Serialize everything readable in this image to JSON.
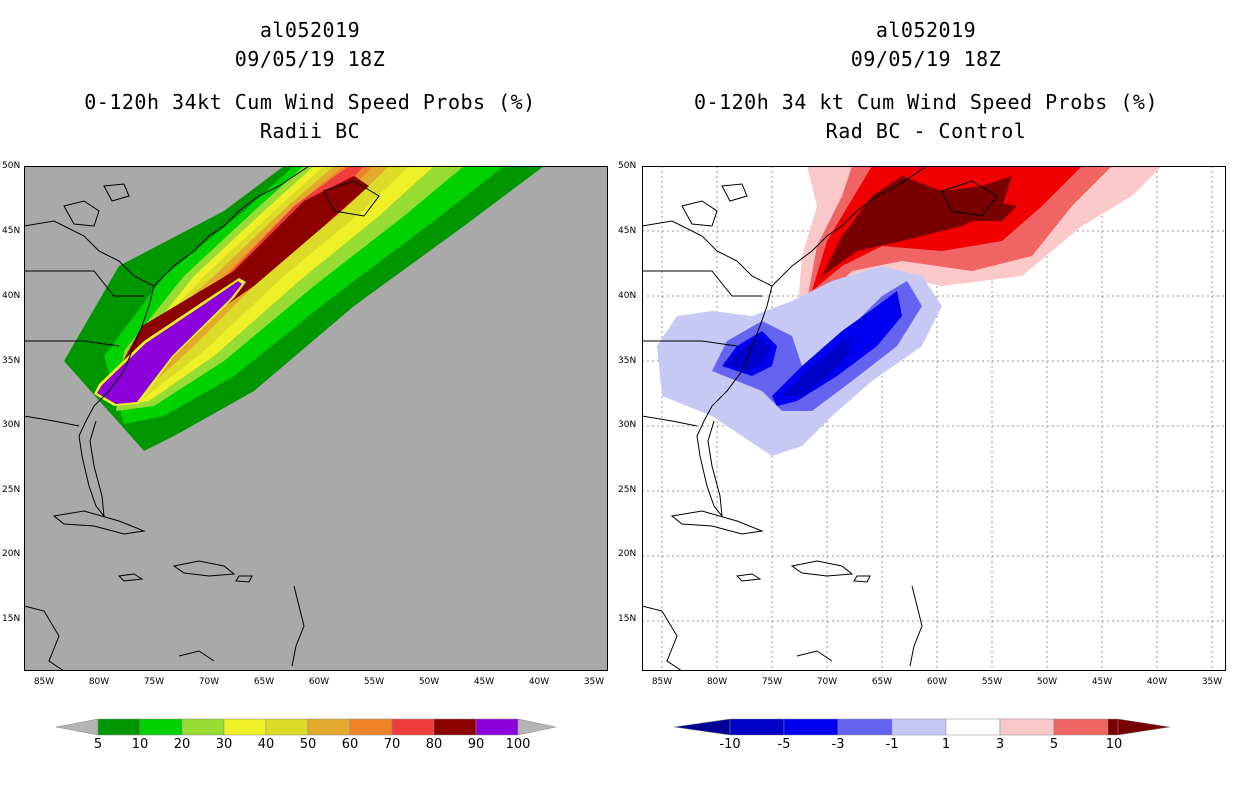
{
  "left_panel": {
    "title_lines": [
      "al052019",
      "09/05/19 18Z",
      "0-120h 34kt Cum Wind Speed Probs (%)",
      "Radii BC"
    ],
    "colorbar_labels": [
      "5",
      "10",
      "20",
      "30",
      "40",
      "50",
      "60",
      "70",
      "80",
      "90",
      "100"
    ],
    "colorbar_colors": [
      "#009600",
      "#00d200",
      "#96dc32",
      "#f0f028",
      "#dcdc28",
      "#e1aa2d",
      "#ed8228",
      "#f03c3c",
      "#8c0000",
      "#8c00dc"
    ]
  },
  "right_panel": {
    "title_lines": [
      "al052019",
      "09/05/19 18Z",
      "0-120h 34 kt Cum Wind Speed Probs (%)",
      "Rad BC - Control"
    ],
    "colorbar_labels": [
      "-10",
      "-5",
      "-3",
      "-1",
      "1",
      "3",
      "5",
      "10"
    ],
    "colorbar_colors": [
      "#0000c8",
      "#0000f0",
      "#6464f0",
      "#c8c8f5",
      "#ffffff",
      "#fac8c8",
      "#f06464",
      "#f00000"
    ]
  },
  "axes": {
    "lat_labels": [
      "50N",
      "45N",
      "40N",
      "35N",
      "30N",
      "25N",
      "20N",
      "15N"
    ],
    "lon_labels": [
      "85W",
      "80W",
      "75W",
      "70W",
      "65W",
      "60W",
      "55W",
      "50W",
      "45W",
      "40W",
      "35W"
    ]
  },
  "colors": {
    "ocean_left": "#a9a9a9",
    "background": "#ffffff",
    "extend_gray": "#b4b4b4",
    "extend_low_right": "#000096",
    "extend_high_right": "#780000"
  }
}
